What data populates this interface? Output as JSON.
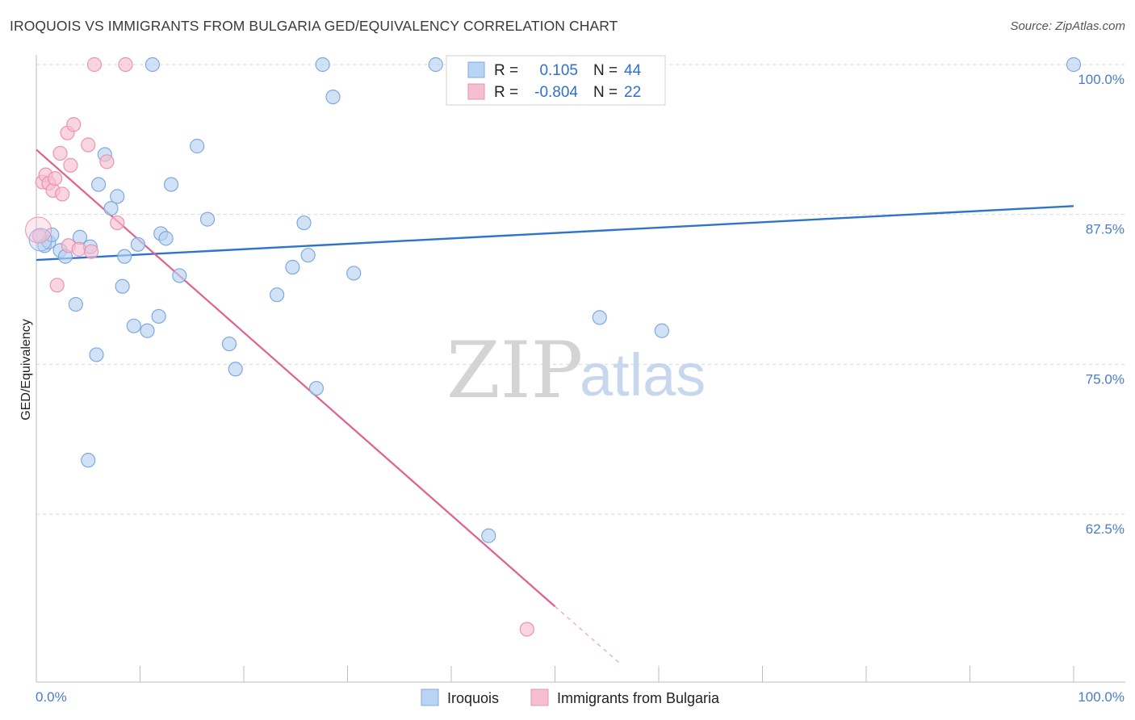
{
  "title": "IROQUOIS VS IMMIGRANTS FROM BULGARIA GED/EQUIVALENCY CORRELATION CHART",
  "source": "Source: ZipAtlas.com",
  "watermark": {
    "zip": "ZIP",
    "atlas": "atlas"
  },
  "legend_box": {
    "rows": [
      {
        "r_label": "R =",
        "r_value": "0.105",
        "n_label": "N =",
        "n_value": "44"
      },
      {
        "r_label": "R =",
        "r_value": "-0.804",
        "n_label": "N =",
        "n_value": "22"
      }
    ]
  },
  "bottom_legend": [
    "Iroquois",
    "Immigrants from Bulgaria"
  ],
  "colors": {
    "iroquois_fill": "#b9d3f3",
    "iroquois_stroke": "#7ea9e0",
    "iroquois_line": "#2f74c9",
    "bulgaria_fill": "#f6bed1",
    "bulgaria_stroke": "#eb93b2",
    "bulgaria_line": "#e0608f",
    "grid": "#d8d8d8",
    "tick_label": "#4a7cc9"
  },
  "chart_data": {
    "type": "scatter",
    "xlabel": "",
    "ylabel": "GED/Equivalency",
    "xlim": [
      0,
      100
    ],
    "ylim": [
      51.5,
      100.5
    ],
    "x_tick_labels": [
      "0.0%",
      "100.0%"
    ],
    "y_ticks": [
      62.5,
      75.0,
      87.5,
      100.0
    ],
    "y_tick_labels": [
      "62.5%",
      "75.0%",
      "87.5%",
      "100.0%"
    ],
    "grid": "horizontal dashed",
    "legend_placement": "top-center",
    "series": [
      {
        "name": "Iroquois",
        "points": [
          [
            0.8,
            84.9
          ],
          [
            1.2,
            85.2
          ],
          [
            1.5,
            85.8
          ],
          [
            2.3,
            84.5
          ],
          [
            2.8,
            84.0
          ],
          [
            3.8,
            80.0
          ],
          [
            4.2,
            85.6
          ],
          [
            5.0,
            67.0
          ],
          [
            5.2,
            84.8
          ],
          [
            5.8,
            75.8
          ],
          [
            6.0,
            90.0
          ],
          [
            6.6,
            92.5
          ],
          [
            7.2,
            88.0
          ],
          [
            7.8,
            89.0
          ],
          [
            8.3,
            81.5
          ],
          [
            8.5,
            84.0
          ],
          [
            9.4,
            78.2
          ],
          [
            9.8,
            85.0
          ],
          [
            10.7,
            77.8
          ],
          [
            11.2,
            100.0
          ],
          [
            11.8,
            79.0
          ],
          [
            12.0,
            85.9
          ],
          [
            12.5,
            85.5
          ],
          [
            13.0,
            90.0
          ],
          [
            13.8,
            82.4
          ],
          [
            15.5,
            93.2
          ],
          [
            16.5,
            87.1
          ],
          [
            18.6,
            76.7
          ],
          [
            19.2,
            74.6
          ],
          [
            23.2,
            80.8
          ],
          [
            24.7,
            83.1
          ],
          [
            25.8,
            86.8
          ],
          [
            26.2,
            84.1
          ],
          [
            27.0,
            73.0
          ],
          [
            27.6,
            100.0
          ],
          [
            28.6,
            97.3
          ],
          [
            30.6,
            82.6
          ],
          [
            38.5,
            100.0
          ],
          [
            43.6,
            60.7
          ],
          [
            54.3,
            78.9
          ],
          [
            60.3,
            77.8
          ],
          [
            100.0,
            100.0
          ]
        ],
        "trend": {
          "x": [
            0,
            100
          ],
          "y": [
            83.7,
            88.2
          ]
        }
      },
      {
        "name": "Immigrants from Bulgaria",
        "points": [
          [
            0.3,
            85.7
          ],
          [
            0.6,
            90.2
          ],
          [
            0.9,
            90.8
          ],
          [
            1.2,
            90.1
          ],
          [
            1.6,
            89.5
          ],
          [
            1.8,
            90.5
          ],
          [
            2.0,
            81.6
          ],
          [
            2.3,
            92.6
          ],
          [
            2.5,
            89.2
          ],
          [
            3.0,
            94.3
          ],
          [
            3.1,
            84.9
          ],
          [
            3.3,
            91.6
          ],
          [
            3.6,
            95.0
          ],
          [
            4.1,
            84.6
          ],
          [
            5.0,
            93.3
          ],
          [
            5.3,
            84.4
          ],
          [
            5.6,
            100.0
          ],
          [
            6.8,
            91.9
          ],
          [
            7.8,
            86.8
          ],
          [
            8.6,
            100.0
          ],
          [
            47.3,
            52.9
          ]
        ],
        "trend": {
          "x": [
            0,
            50
          ],
          "y": [
            92.9,
            54.8
          ]
        },
        "trend_dashed_extension": {
          "x": [
            50,
            56.2
          ],
          "y": [
            54.8,
            50.1
          ]
        }
      }
    ]
  }
}
